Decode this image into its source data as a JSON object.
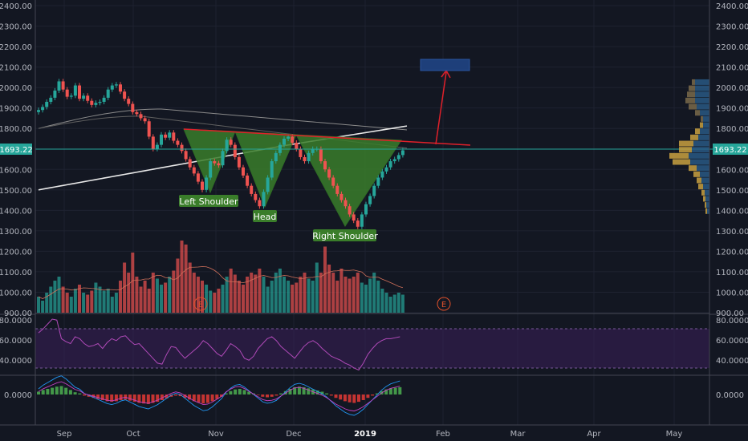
{
  "price_axis": {
    "labels": [
      "2400.00",
      "2300.00",
      "2200.00",
      "2100.00",
      "2000.00",
      "1900.00",
      "1800.00",
      "1700.00",
      "1600.00",
      "1500.00",
      "1400.00",
      "1300.00",
      "1200.00",
      "1100.00",
      "1000.00",
      "900.00"
    ],
    "current_price": "1693.22"
  },
  "volume_axis": {
    "labels": [
      "1200.00",
      "1100.00",
      "1000.00"
    ]
  },
  "rsi_axis": {
    "labels": [
      "80.0000",
      "60.0000",
      "40.0000"
    ]
  },
  "macd_axis": {
    "labels": [
      "0.0000"
    ]
  },
  "time_axis": {
    "labels": [
      "Sep",
      "Oct",
      "Nov",
      "Dec",
      "2019",
      "Feb",
      "Mar",
      "Apr",
      "May"
    ]
  },
  "annotations": {
    "left_shoulder": "Left Shoulder",
    "head": "Head",
    "right_shoulder": "Right Shoulder",
    "earnings_marker": "E"
  },
  "colors": {
    "background": "#131722",
    "up": "#26a69a",
    "down": "#ef5350",
    "pattern_fill": "#3a7d2a",
    "neckline": "#e0202a",
    "target_box": "#1e3f7a",
    "rsi_band": "#3a1f5a",
    "rsi_line": "#b04ab8"
  },
  "chart_data": [
    {
      "type": "candlestick",
      "title": "",
      "ylim": [
        900,
        2400
      ],
      "x_range": [
        "Aug 2018",
        "May 2019"
      ],
      "pattern": "inverse head and shoulders",
      "neckline_level_approx": 1780,
      "target_zone": [
        2080,
        2130
      ],
      "series": [
        {
          "name": "",
          "close": [
            1890,
            1905,
            1930,
            1950,
            1985,
            2030,
            1990,
            1955,
            1960,
            2010,
            1945,
            1960,
            1935,
            1915,
            1925,
            1930,
            1950,
            1990,
            2010,
            2015,
            1980,
            1945,
            1920,
            1880,
            1870,
            1850,
            1835,
            1760,
            1700,
            1720,
            1770,
            1755,
            1780,
            1740,
            1720,
            1690,
            1650,
            1610,
            1580,
            1540,
            1500,
            1560,
            1640,
            1630,
            1620,
            1690,
            1745,
            1720,
            1660,
            1610,
            1570,
            1520,
            1480,
            1450,
            1420,
            1490,
            1560,
            1640,
            1680,
            1720,
            1750,
            1760,
            1730,
            1700,
            1660,
            1640,
            1680,
            1700,
            1700,
            1640,
            1600,
            1560,
            1520,
            1480,
            1450,
            1420,
            1380,
            1350,
            1320,
            1380,
            1430,
            1470,
            1520,
            1560,
            1590,
            1610,
            1640,
            1650,
            1670,
            1693
          ]
        }
      ]
    },
    {
      "type": "bar",
      "title": "",
      "ylim": [
        900,
        1300
      ],
      "series": [
        {
          "name": "",
          "values": [
            980,
            960,
            1000,
            1030,
            1060,
            1080,
            1030,
            1000,
            980,
            1020,
            1040,
            1000,
            990,
            1010,
            1050,
            1030,
            1010,
            1020,
            980,
            1000,
            1060,
            1150,
            1100,
            1200,
            1080,
            1030,
            1060,
            1020,
            1100,
            1070,
            1040,
            1050,
            1080,
            1110,
            1170,
            1260,
            1240,
            1150,
            1100,
            1080,
            1060,
            1040,
            1010,
            1000,
            1020,
            1040,
            1080,
            1120,
            1090,
            1060,
            1040,
            1080,
            1100,
            1090,
            1120,
            1080,
            1030,
            1060,
            1100,
            1120,
            1080,
            1060,
            1040,
            1050,
            1080,
            1100,
            1070,
            1060,
            1150,
            1100,
            1230,
            1140,
            1100,
            1060,
            1120,
            1080,
            1070,
            1080,
            1100,
            1050,
            1040,
            1070,
            1100,
            1060,
            1020,
            1000,
            980,
            990,
            1000,
            990
          ]
        }
      ]
    },
    {
      "type": "line",
      "title": "",
      "ylim": [
        25,
        85
      ],
      "series": [
        {
          "name": "",
          "values": [
            66,
            70,
            75,
            80,
            79,
            60,
            57,
            55,
            62,
            60,
            55,
            52,
            53,
            55,
            50,
            56,
            60,
            58,
            62,
            63,
            58,
            54,
            55,
            50,
            45,
            40,
            35,
            34,
            44,
            52,
            51,
            45,
            40,
            44,
            48,
            52,
            58,
            55,
            50,
            45,
            42,
            48,
            55,
            52,
            48,
            40,
            38,
            42,
            50,
            55,
            60,
            62,
            58,
            52,
            48,
            44,
            40,
            46,
            52,
            56,
            58,
            55,
            50,
            46,
            42,
            40,
            38,
            35,
            33,
            30,
            28,
            35,
            44,
            50,
            55,
            58,
            60,
            60,
            61,
            62
          ]
        }
      ]
    },
    {
      "type": "bar",
      "title": "",
      "series": [
        {
          "name": "",
          "values": [
            0.5,
            0.8,
            1,
            1.2,
            1.4,
            1.5,
            1.2,
            0.8,
            0.4,
            0.2,
            -0.2,
            -0.4,
            -0.6,
            -0.8,
            -1,
            -1.2,
            -1.3,
            -1.2,
            -1,
            -0.9,
            -1.1,
            -1.3,
            -1.5,
            -1.6,
            -1.7,
            -1.5,
            -1.3,
            -1.0,
            -0.7,
            -0.4,
            -0.2,
            -0.3,
            -0.6,
            -0.9,
            -1.2,
            -1.4,
            -1.6,
            -1.5,
            -1.2,
            -0.8,
            -0.4,
            0.2,
            0.6,
            0.9,
            1,
            0.8,
            0.5,
            0.2,
            -0.1,
            -0.4,
            -0.5,
            -0.4,
            -0.2,
            0.2,
            0.6,
            1,
            1.3,
            1.4,
            1.3,
            1.1,
            0.9,
            0.7,
            0.5,
            0.2,
            -0.2,
            -0.6,
            -0.9,
            -1.2,
            -1.4,
            -1.5,
            -1.3,
            -1.0,
            -0.6,
            -0.2,
            0.2,
            0.6,
            0.9,
            1.1,
            1.2,
            1.3
          ]
        }
      ]
    }
  ]
}
